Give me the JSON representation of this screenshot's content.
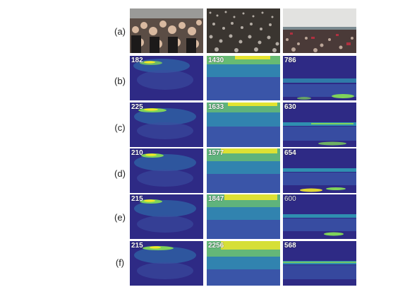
{
  "rows": [
    {
      "label": "(a)",
      "counts": [
        "",
        "",
        ""
      ]
    },
    {
      "label": "(b)",
      "counts": [
        "182",
        "1430",
        "786"
      ]
    },
    {
      "label": "(c)",
      "counts": [
        "225",
        "1633",
        "630"
      ]
    },
    {
      "label": "(d)",
      "counts": [
        "210",
        "1577",
        "654"
      ]
    },
    {
      "label": "(e)",
      "counts": [
        "215",
        "1847",
        "600"
      ]
    },
    {
      "label": "(f)",
      "counts": [
        "215",
        "2256",
        "568"
      ]
    }
  ],
  "colors": {
    "map_bg": "#2e2a85",
    "map_mid": "#2f8fb0",
    "map_high": "#7fd35a",
    "map_peak": "#f3e928"
  },
  "icons": [
    "crowd-photo",
    "density-map"
  ]
}
